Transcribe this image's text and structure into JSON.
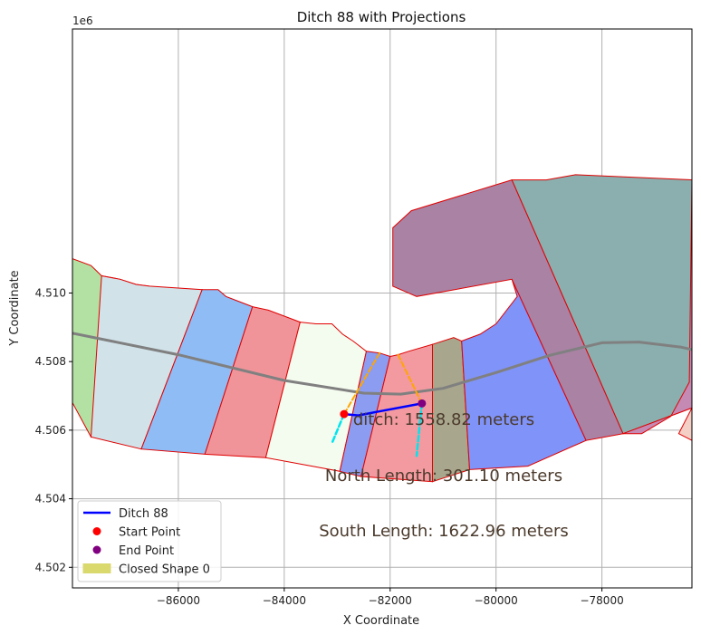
{
  "chart_data": {
    "type": "line",
    "title": "Ditch 88 with Projections",
    "xlabel": "X Coordinate",
    "ylabel": "Y Coordinate",
    "y_offset_label": "1e6",
    "xlim": [
      -88000,
      -76300
    ],
    "ylim": [
      4501400,
      4517700
    ],
    "xticks": [
      -86000,
      -84000,
      -82000,
      -80000,
      -78000
    ],
    "xtick_labels": [
      "−86000",
      "−84000",
      "−82000",
      "−80000",
      "−78000"
    ],
    "yticks": [
      4502000,
      4504000,
      4506000,
      4508000,
      4510000
    ],
    "ytick_labels": [
      "4.502",
      "4.504",
      "4.506",
      "4.508",
      "4.510"
    ],
    "grid": true,
    "legend_position": "lower-left",
    "legend": [
      {
        "label": "Ditch 88",
        "kind": "line",
        "color": "#0000ff"
      },
      {
        "label": "Start Point",
        "kind": "point",
        "color": "#ff0000"
      },
      {
        "label": "End Point",
        "kind": "point",
        "color": "#800080"
      },
      {
        "label": "Closed Shape 0",
        "kind": "patch",
        "color": "#d9d96e"
      }
    ],
    "annotations": [
      "ditch: 1558.82 meters",
      "North Length: 301.10 meters",
      "South Length: 1622.96 meters"
    ],
    "colors": {
      "ditch": "#0000ff",
      "start": "#ff0000",
      "end": "#800080",
      "centerline": "#808080",
      "north_projection": "#ffa500",
      "south_projection": "#00e5ee",
      "polygon_edge": "#e00000"
    },
    "polygons": [
      {
        "color": "#b3e0a3",
        "points": [
          [
            -88000,
            4511000
          ],
          [
            -87650,
            4510800
          ],
          [
            -87450,
            4510500
          ],
          [
            -87100,
            4510400
          ],
          [
            -86800,
            4510250
          ],
          [
            -86550,
            4510200
          ],
          [
            -87650,
            4505800
          ],
          [
            -88000,
            4506800
          ]
        ]
      },
      {
        "color": "#d1e3e9",
        "points": [
          [
            -87450,
            4510500
          ],
          [
            -87100,
            4510400
          ],
          [
            -86800,
            4510250
          ],
          [
            -86550,
            4510200
          ],
          [
            -85550,
            4510100
          ],
          [
            -86700,
            4505450
          ],
          [
            -87650,
            4505800
          ]
        ]
      },
      {
        "color": "#8fbcf4",
        "points": [
          [
            -85550,
            4510100
          ],
          [
            -85250,
            4510100
          ],
          [
            -85100,
            4509900
          ],
          [
            -84600,
            4509600
          ],
          [
            -85500,
            4505300
          ],
          [
            -86700,
            4505450
          ]
        ]
      },
      {
        "color": "#f0949a",
        "points": [
          [
            -84600,
            4509600
          ],
          [
            -84300,
            4509500
          ],
          [
            -83700,
            4509150
          ],
          [
            -84350,
            4505200
          ],
          [
            -85500,
            4505300
          ]
        ]
      },
      {
        "color": "#f4fbef",
        "points": [
          [
            -83700,
            4509150
          ],
          [
            -83400,
            4509100
          ],
          [
            -83100,
            4509100
          ],
          [
            -82900,
            4508800
          ],
          [
            -82700,
            4508600
          ],
          [
            -82450,
            4508300
          ],
          [
            -82950,
            4504800
          ],
          [
            -84350,
            4505200
          ]
        ]
      },
      {
        "color": "#8c9cf0",
        "points": [
          [
            -82450,
            4508300
          ],
          [
            -82200,
            4508250
          ],
          [
            -82000,
            4508150
          ],
          [
            -82550,
            4504650
          ],
          [
            -82950,
            4504800
          ]
        ]
      },
      {
        "color": "#f29aa0",
        "points": [
          [
            -82000,
            4508150
          ],
          [
            -81850,
            4508200
          ],
          [
            -81650,
            4508300
          ],
          [
            -81200,
            4508500
          ],
          [
            -81200,
            4504500
          ],
          [
            -82550,
            4504650
          ]
        ]
      },
      {
        "color": "#a8a68c",
        "points": [
          [
            -81200,
            4508500
          ],
          [
            -80800,
            4508700
          ],
          [
            -80650,
            4508600
          ],
          [
            -80500,
            4504850
          ],
          [
            -81200,
            4504500
          ]
        ]
      },
      {
        "color": "#8093f8",
        "points": [
          [
            -80650,
            4508600
          ],
          [
            -80300,
            4508800
          ],
          [
            -80000,
            4509100
          ],
          [
            -79600,
            4509900
          ],
          [
            -79700,
            4510400
          ],
          [
            -78300,
            4505700
          ],
          [
            -79400,
            4504950
          ],
          [
            -80500,
            4504850
          ]
        ]
      },
      {
        "color": "#a982a4",
        "points": [
          [
            -81950,
            4510200
          ],
          [
            -81950,
            4511900
          ],
          [
            -81600,
            4512400
          ],
          [
            -79700,
            4513300
          ],
          [
            -77600,
            4505900
          ],
          [
            -78300,
            4505700
          ],
          [
            -79700,
            4510400
          ],
          [
            -81500,
            4509900
          ]
        ]
      },
      {
        "color": "#8aafae",
        "points": [
          [
            -79700,
            4513300
          ],
          [
            -79050,
            4513300
          ],
          [
            -78500,
            4513450
          ],
          [
            -76300,
            4513300
          ],
          [
            -76300,
            4506650
          ],
          [
            -77600,
            4505900
          ]
        ]
      },
      {
        "color": "#c48ab4",
        "points": [
          [
            -76300,
            4513300
          ],
          [
            -76300,
            4506650
          ],
          [
            -77600,
            4505900
          ],
          [
            -77250,
            4505900
          ],
          [
            -76700,
            4506400
          ],
          [
            -76350,
            4507400
          ],
          [
            -76300,
            4513300
          ]
        ]
      },
      {
        "color": "#f4cfc6",
        "points": [
          [
            -76300,
            4506650
          ],
          [
            -76550,
            4505900
          ],
          [
            -76300,
            4505700
          ],
          [
            -76300,
            4506650
          ]
        ]
      }
    ],
    "centerline": {
      "x": [
        -88000,
        -86000,
        -84000,
        -82500,
        -81800,
        -81000,
        -80000,
        -79000,
        -78000,
        -77300,
        -76500,
        -76300
      ],
      "y": [
        4508830,
        4508200,
        4507450,
        4507080,
        4507050,
        4507220,
        4507680,
        4508180,
        4508550,
        4508570,
        4508420,
        4508350
      ]
    },
    "ditch": {
      "x": [
        -82870,
        -82600,
        -82300,
        -81400
      ],
      "y": [
        4506470,
        4506430,
        4506520,
        4506780
      ]
    },
    "start_point": {
      "x": -82870,
      "y": 4506470
    },
    "end_point": {
      "x": -81400,
      "y": 4506780
    },
    "north_projections": [
      {
        "x": [
          -82870,
          -82200
        ],
        "y": [
          4506470,
          4508250
        ]
      },
      {
        "x": [
          -81400,
          -81850
        ],
        "y": [
          4506780,
          4508200
        ]
      }
    ],
    "south_projections": [
      {
        "x": [
          -82870,
          -83100
        ],
        "y": [
          4506470,
          4505620
        ]
      },
      {
        "x": [
          -81400,
          -81500
        ],
        "y": [
          4506780,
          4505250
        ]
      }
    ]
  }
}
